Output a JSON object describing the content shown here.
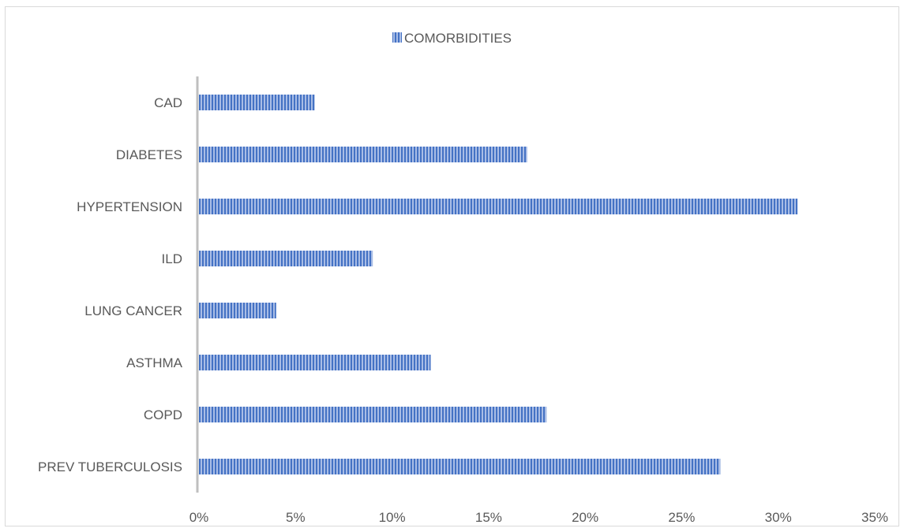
{
  "chart_data": {
    "type": "bar",
    "orientation": "horizontal",
    "categories": [
      "CAD",
      "DIABETES",
      "HYPERTENSION",
      "ILD",
      "LUNG CANCER",
      "ASTHMA",
      "COPD",
      "PREV TUBERCULOSIS"
    ],
    "series": [
      {
        "name": "COMORBIDITIES",
        "values": [
          6,
          17,
          31,
          9,
          4,
          12,
          18,
          27
        ],
        "color": "#4472c4"
      }
    ],
    "xlim": [
      0,
      35
    ],
    "x_ticks": [
      "0%",
      "5%",
      "10%",
      "15%",
      "20%",
      "25%",
      "30%",
      "35%"
    ],
    "x_unit": "%",
    "grid": false,
    "legend": "top"
  }
}
